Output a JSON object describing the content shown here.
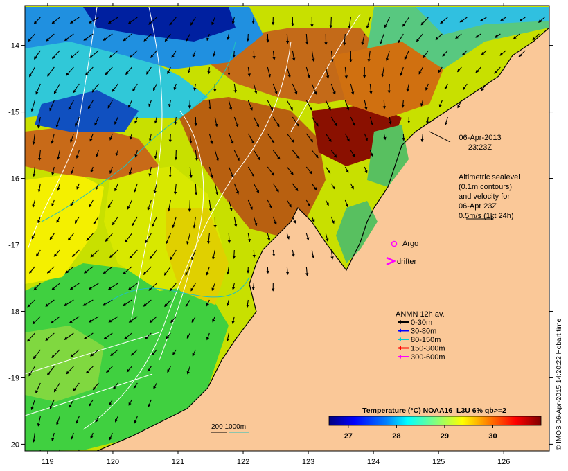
{
  "map": {
    "x_ticks": [
      "119",
      "120",
      "121",
      "122",
      "123",
      "124",
      "125",
      "126"
    ],
    "y_ticks": [
      "-14",
      "-15",
      "-16",
      "-17",
      "-18",
      "-19",
      "-20"
    ],
    "lon_range": [
      118.65,
      126.7
    ],
    "lat_range": [
      -20.1,
      -13.4
    ]
  },
  "annotations": {
    "datetime_line1": "06-Apr-2013",
    "datetime_line2": "23:23Z",
    "altimetry_lines": [
      "Altimetric sealevel",
      "(0.1m contours)",
      "and velocity for",
      "06-Apr 23Z",
      "0.5m/s (1kt 24h)"
    ],
    "argo_label": "Argo",
    "drifter_label": "drifter",
    "anmn_title": "ANMN 12h av.",
    "anmn_items": [
      {
        "label": "0-30m",
        "color": "#000000"
      },
      {
        "label": "30-80m",
        "color": "#0000ff"
      },
      {
        "label": "80-150m",
        "color": "#00cccc"
      },
      {
        "label": "150-300m",
        "color": "#ff0000"
      },
      {
        "label": "300-600m",
        "color": "#ff00ff"
      }
    ],
    "isobath_label": "200  1000m",
    "credit": "© IMOS 06-Apr-2015 14:20:22 Hobart time"
  },
  "colorbar": {
    "title": "Temperature (°C) NOAA16_L3U 6% qb>=2",
    "ticks": [
      "27",
      "28",
      "29",
      "30"
    ],
    "tick_values": [
      27,
      28,
      29,
      30
    ],
    "range": [
      26.6,
      31.0
    ]
  },
  "colors": {
    "land": "#fac898",
    "colormap": [
      "#00007f",
      "#0000ff",
      "#0080ff",
      "#00ffff",
      "#80ff80",
      "#ffff00",
      "#ff8000",
      "#ff0000",
      "#7f0000"
    ]
  }
}
